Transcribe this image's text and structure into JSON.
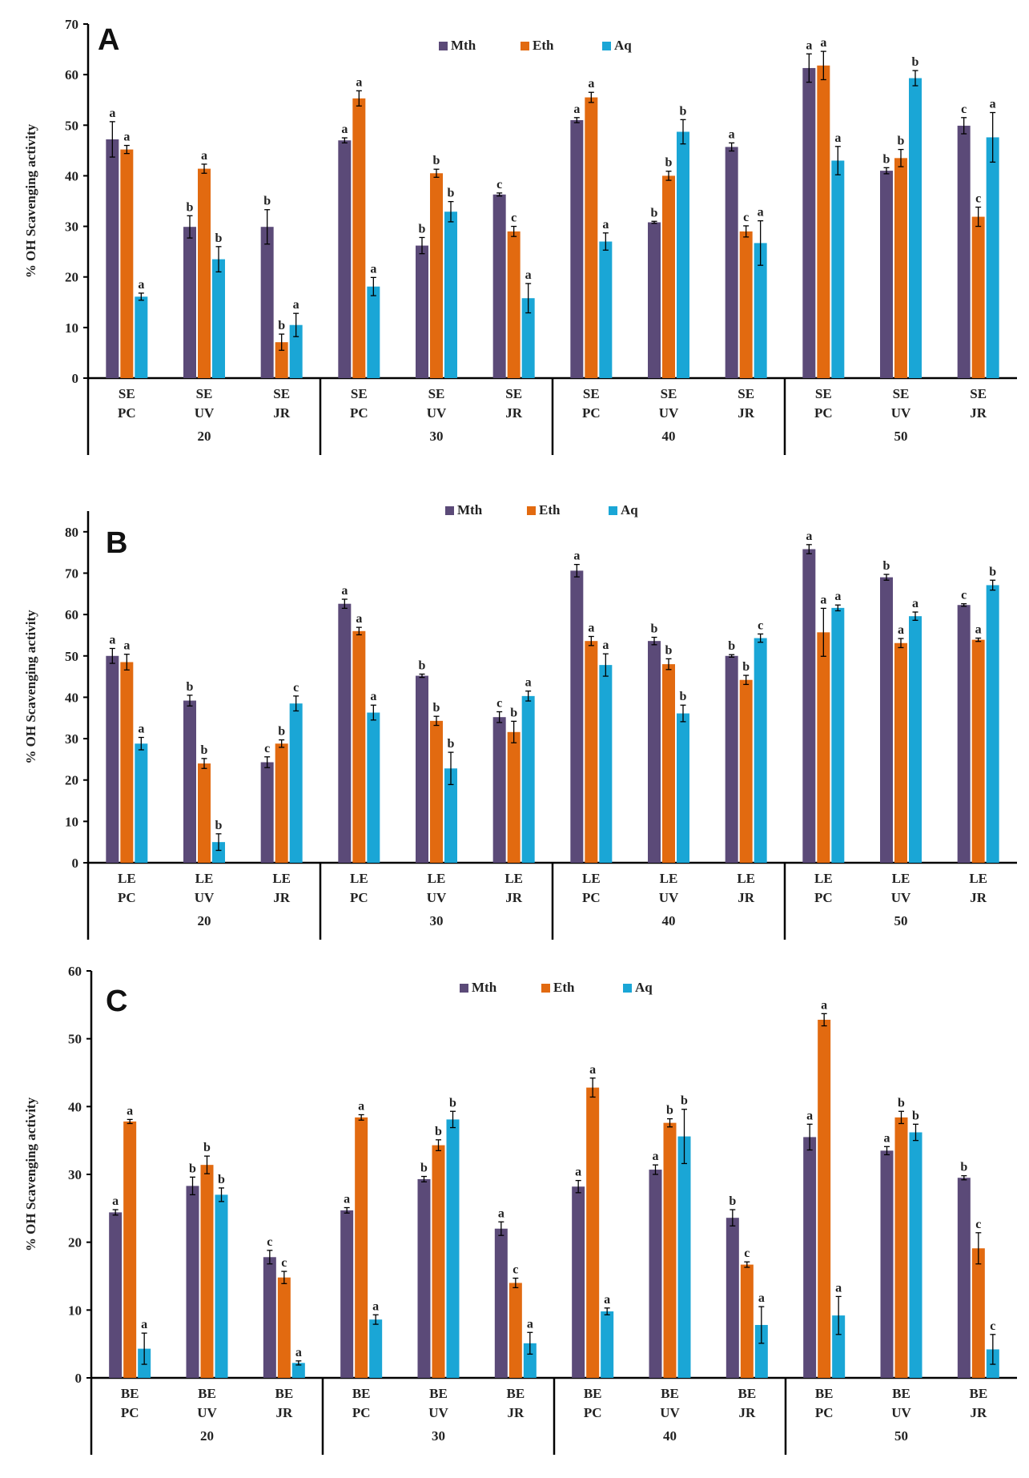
{
  "colors": {
    "Mth": "#5b4a78",
    "Eth": "#e26a10",
    "Aq": "#1aa6d6"
  },
  "chart_data": [
    {
      "type": "bar",
      "panel_label": "A",
      "ylabel": "% OH  Scavenging activity",
      "ylim": [
        0,
        70
      ],
      "ytick_step": 10,
      "legend": [
        "Mth",
        "Eth",
        "Aq"
      ],
      "groups": [
        "20",
        "30",
        "40",
        "50"
      ],
      "categories": [
        [
          "SE",
          "PC"
        ],
        [
          "SE",
          "UV"
        ],
        [
          "SE",
          "JR"
        ],
        [
          "SE",
          "PC"
        ],
        [
          "SE",
          "UV"
        ],
        [
          "SE",
          "JR"
        ],
        [
          "SE",
          "PC"
        ],
        [
          "SE",
          "UV"
        ],
        [
          "SE",
          "JR"
        ],
        [
          "SE",
          "PC"
        ],
        [
          "SE",
          "UV"
        ],
        [
          "SE",
          "JR"
        ]
      ],
      "series": [
        {
          "name": "Mth",
          "values": [
            47.2,
            29.9,
            29.9,
            47.0,
            26.2,
            36.3,
            51.0,
            30.8,
            45.7,
            61.3,
            41.0,
            49.9
          ],
          "errors": [
            3.5,
            2.2,
            3.4,
            0.5,
            1.6,
            0.3,
            0.5,
            0.2,
            0.8,
            2.8,
            0.6,
            1.6
          ],
          "labels": [
            "a",
            "b",
            "b",
            "a",
            "b",
            "c",
            "a",
            "b",
            "a",
            "a",
            "b",
            "c"
          ]
        },
        {
          "name": "Eth",
          "values": [
            45.2,
            41.4,
            7.1,
            55.3,
            40.5,
            29.0,
            55.5,
            40.0,
            29.0,
            61.8,
            43.5,
            31.9
          ],
          "errors": [
            0.8,
            0.9,
            1.6,
            1.5,
            0.8,
            1.0,
            1.0,
            0.9,
            1.1,
            2.8,
            1.7,
            1.9
          ],
          "labels": [
            "a",
            "a",
            "b",
            "a",
            "b",
            "c",
            "a",
            "b",
            "c",
            "a",
            "b",
            "c"
          ]
        },
        {
          "name": "Aq",
          "values": [
            16.1,
            23.5,
            10.5,
            18.1,
            32.9,
            15.8,
            27.0,
            48.7,
            26.7,
            43.0,
            59.3,
            47.6
          ],
          "errors": [
            0.7,
            2.5,
            2.3,
            1.8,
            2.0,
            2.9,
            1.7,
            2.4,
            4.4,
            2.8,
            1.5,
            4.9
          ],
          "labels": [
            "a",
            "b",
            "a",
            "a",
            "b",
            "a",
            "a",
            "b",
            "a",
            "a",
            "b",
            "a"
          ]
        }
      ]
    },
    {
      "type": "bar",
      "panel_label": "B",
      "ylabel": "% OH  Scavenging activity",
      "ylim": [
        0,
        85
      ],
      "ytick_max": 80,
      "ytick_step": 10,
      "legend": [
        "Mth",
        "Eth",
        "Aq"
      ],
      "groups": [
        "20",
        "30",
        "40",
        "50"
      ],
      "categories": [
        [
          "LE",
          "PC"
        ],
        [
          "LE",
          "UV"
        ],
        [
          "LE",
          "JR"
        ],
        [
          "LE",
          "PC"
        ],
        [
          "LE",
          "UV"
        ],
        [
          "LE",
          "JR"
        ],
        [
          "LE",
          "PC"
        ],
        [
          "LE",
          "UV"
        ],
        [
          "LE",
          "JR"
        ],
        [
          "LE",
          "PC"
        ],
        [
          "LE",
          "UV"
        ],
        [
          "LE",
          "JR"
        ]
      ],
      "series": [
        {
          "name": "Mth",
          "values": [
            50.0,
            39.2,
            24.3,
            62.6,
            45.2,
            35.2,
            70.6,
            53.6,
            50.0,
            75.8,
            69.0,
            62.3
          ],
          "errors": [
            1.8,
            1.3,
            1.3,
            1.1,
            0.4,
            1.3,
            1.5,
            0.9,
            0.3,
            1.1,
            0.7,
            0.3
          ],
          "labels": [
            "a",
            "b",
            "c",
            "a",
            "b",
            "c",
            "a",
            "b",
            "b",
            "a",
            "b",
            "c"
          ]
        },
        {
          "name": "Eth",
          "values": [
            48.5,
            24.0,
            28.8,
            56.0,
            34.3,
            31.6,
            53.6,
            48.0,
            44.2,
            55.7,
            53.1,
            53.9
          ],
          "errors": [
            1.9,
            1.2,
            0.9,
            0.9,
            1.1,
            2.6,
            1.1,
            1.3,
            1.1,
            5.8,
            1.1,
            0.4
          ],
          "labels": [
            "a",
            "b",
            "b",
            "a",
            "b",
            "b",
            "a",
            "b",
            "b",
            "a",
            "a",
            "a"
          ]
        },
        {
          "name": "Aq",
          "values": [
            28.8,
            5.0,
            38.5,
            36.3,
            22.8,
            40.3,
            47.8,
            36.1,
            54.3,
            61.6,
            59.6,
            67.1
          ],
          "errors": [
            1.5,
            2.0,
            1.8,
            1.8,
            3.9,
            1.2,
            2.7,
            2.0,
            1.0,
            0.7,
            1.0,
            1.2
          ],
          "labels": [
            "a",
            "b",
            "c",
            "a",
            "b",
            "a",
            "a",
            "b",
            "c",
            "a",
            "a",
            "b"
          ]
        }
      ]
    },
    {
      "type": "bar",
      "panel_label": "C",
      "ylabel": "% OH  Scavenging activity",
      "ylim": [
        0,
        60
      ],
      "ytick_step": 10,
      "legend": [
        "Mth",
        "Eth",
        "Aq"
      ],
      "groups": [
        "20",
        "30",
        "40",
        "50"
      ],
      "categories": [
        [
          "BE",
          "PC"
        ],
        [
          "BE",
          "UV"
        ],
        [
          "BE",
          "JR"
        ],
        [
          "BE",
          "PC"
        ],
        [
          "BE",
          "UV"
        ],
        [
          "BE",
          "JR"
        ],
        [
          "BE",
          "PC"
        ],
        [
          "BE",
          "UV"
        ],
        [
          "BE",
          "JR"
        ],
        [
          "BE",
          "PC"
        ],
        [
          "BE",
          "UV"
        ],
        [
          "BE",
          "JR"
        ]
      ],
      "series": [
        {
          "name": "Mth",
          "values": [
            24.4,
            28.3,
            17.8,
            24.7,
            29.3,
            22.0,
            28.2,
            30.7,
            23.6,
            35.5,
            33.5,
            29.5
          ],
          "errors": [
            0.4,
            1.3,
            1.0,
            0.4,
            0.4,
            1.0,
            0.9,
            0.7,
            1.2,
            1.9,
            0.6,
            0.3
          ],
          "labels": [
            "a",
            "b",
            "c",
            "a",
            "b",
            "a",
            "a",
            "a",
            "b",
            "a",
            "a",
            "b"
          ]
        },
        {
          "name": "Eth",
          "values": [
            37.8,
            31.4,
            14.8,
            38.4,
            34.3,
            14.0,
            42.8,
            37.6,
            16.7,
            52.8,
            38.4,
            19.1
          ],
          "errors": [
            0.3,
            1.3,
            0.9,
            0.4,
            0.8,
            0.7,
            1.4,
            0.6,
            0.4,
            0.9,
            0.9,
            2.3
          ],
          "labels": [
            "a",
            "b",
            "c",
            "a",
            "b",
            "c",
            "a",
            "b",
            "c",
            "a",
            "b",
            "c"
          ]
        },
        {
          "name": "Aq",
          "values": [
            4.3,
            27.0,
            2.2,
            8.6,
            38.1,
            5.1,
            9.8,
            35.6,
            7.8,
            9.2,
            36.2,
            4.2
          ],
          "errors": [
            2.3,
            1.0,
            0.3,
            0.7,
            1.2,
            1.6,
            0.5,
            4.0,
            2.7,
            2.8,
            1.2,
            2.2
          ],
          "labels": [
            "a",
            "b",
            "a",
            "a",
            "b",
            "a",
            "a",
            "b",
            "a",
            "a",
            "b",
            "c"
          ]
        }
      ]
    }
  ]
}
